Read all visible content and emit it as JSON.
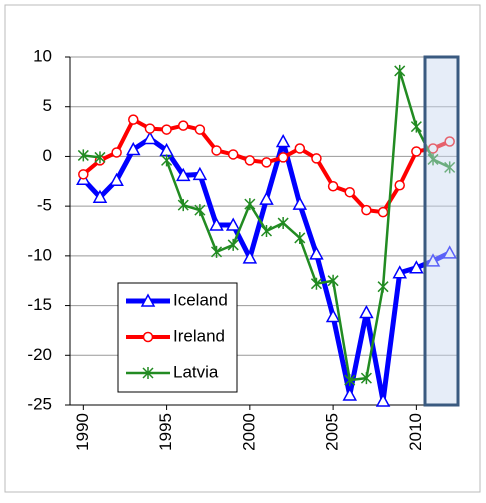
{
  "chart_data": {
    "type": "line",
    "x": [
      1990,
      1991,
      1992,
      1993,
      1994,
      1995,
      1996,
      1997,
      1998,
      1999,
      2000,
      2001,
      2002,
      2003,
      2004,
      2005,
      2006,
      2007,
      2008,
      2009,
      2010,
      2011,
      2012
    ],
    "series": [
      {
        "name": "Iceland",
        "color": "#0000ff",
        "marker": "triangle",
        "values": [
          -2.3,
          -4.1,
          -2.4,
          0.7,
          1.8,
          0.6,
          -1.9,
          -1.8,
          -6.9,
          -6.9,
          -10.2,
          -4.3,
          1.5,
          -4.8,
          -9.8,
          -16.1,
          -24.0,
          -15.7,
          -24.6,
          -11.7,
          -11.2,
          -10.5,
          -9.7
        ]
      },
      {
        "name": "Ireland",
        "color": "#ff0000",
        "marker": "circle",
        "values": [
          -1.8,
          -0.4,
          0.4,
          3.7,
          2.8,
          2.7,
          3.1,
          2.7,
          0.6,
          0.2,
          -0.4,
          -0.6,
          -0.1,
          0.8,
          -0.2,
          -3.0,
          -3.6,
          -5.4,
          -5.6,
          -2.9,
          0.5,
          0.8,
          1.5
        ]
      },
      {
        "name": "Latvia",
        "color": "#228b22",
        "marker": "star",
        "values": [
          0.1,
          -0.1,
          null,
          null,
          null,
          -0.4,
          -4.9,
          -5.4,
          -9.6,
          -8.9,
          -4.8,
          -7.5,
          -6.7,
          -8.2,
          -12.8,
          -12.5,
          -22.5,
          -22.3,
          -13.1,
          8.6,
          3.0,
          -0.3,
          -1.1
        ]
      }
    ],
    "xlim": [
      1989.2,
      2012.5
    ],
    "xticks": [
      1990,
      1995,
      2000,
      2005,
      2010
    ],
    "ylim": [
      -25,
      10
    ],
    "yticks": [
      -25,
      -20,
      -15,
      -10,
      -5,
      0,
      5,
      10
    ],
    "grid": true,
    "legend": "lower left"
  }
}
